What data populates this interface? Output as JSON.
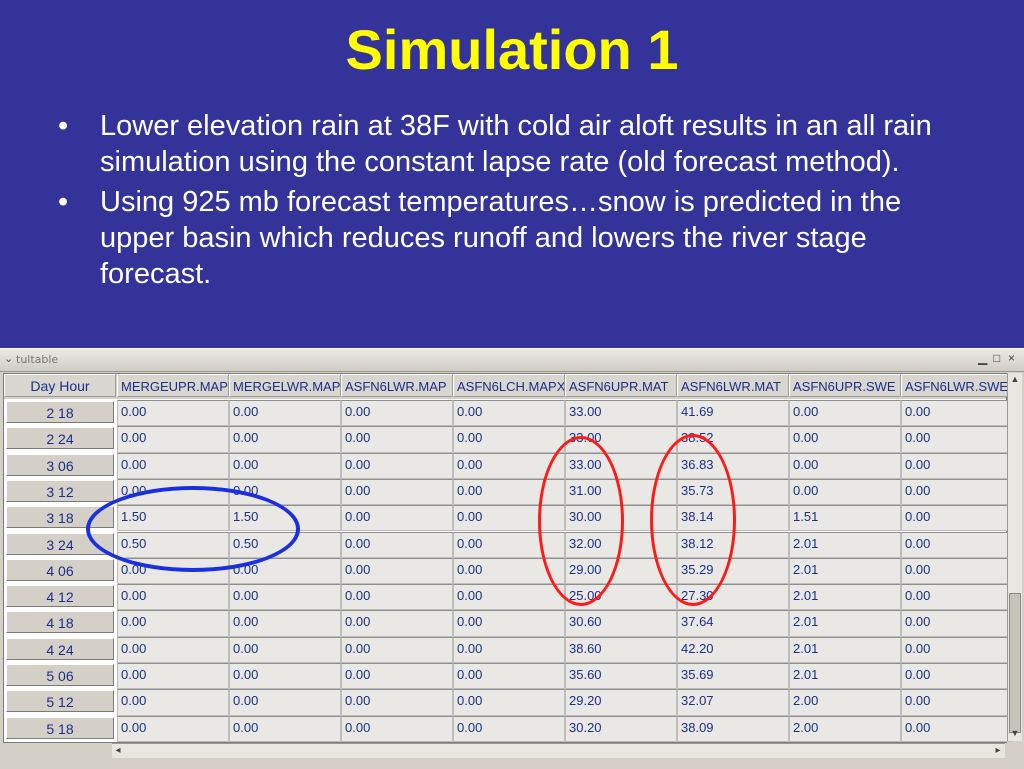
{
  "slide": {
    "title": "Simulation 1",
    "bullets": [
      "Lower elevation rain at 38F with cold air aloft results in an all rain simulation using the constant lapse rate (old forecast method).",
      "Using 925 mb forecast temperatures…snow is predicted in the upper basin which reduces runoff and lowers the river stage forecast."
    ],
    "bullet_glyph": "•"
  },
  "window": {
    "title": "tultable",
    "menu_icon": "chevron-down-icon",
    "controls": {
      "minimize": "▁",
      "maximize": "□",
      "close": "×"
    }
  },
  "table": {
    "row_header_label": "Day  Hour",
    "columns": [
      "MERGEUPR.MAP",
      "MERGELWR.MAP",
      "ASFN6LWR.MAP",
      "ASFN6LCH.MAPX",
      "ASFN6UPR.MAT",
      "ASFN6LWR.MAT",
      "ASFN6UPR.SWE",
      "ASFN6LWR.SWE"
    ],
    "rows": [
      {
        "label": "2  18",
        "values": [
          "0.00",
          "0.00",
          "0.00",
          "0.00",
          "33.00",
          "41.69",
          "0.00",
          "0.00"
        ]
      },
      {
        "label": "2  24",
        "values": [
          "0.00",
          "0.00",
          "0.00",
          "0.00",
          "33.00",
          "38.52",
          "0.00",
          "0.00"
        ]
      },
      {
        "label": "3  06",
        "values": [
          "0.00",
          "0.00",
          "0.00",
          "0.00",
          "33.00",
          "36.83",
          "0.00",
          "0.00"
        ]
      },
      {
        "label": "3  12",
        "values": [
          "0.00",
          "0.00",
          "0.00",
          "0.00",
          "31.00",
          "35.73",
          "0.00",
          "0.00"
        ]
      },
      {
        "label": "3  18",
        "values": [
          "1.50",
          "1.50",
          "0.00",
          "0.00",
          "30.00",
          "38.14",
          "1.51",
          "0.00"
        ]
      },
      {
        "label": "3  24",
        "values": [
          "0.50",
          "0.50",
          "0.00",
          "0.00",
          "32.00",
          "38.12",
          "2.01",
          "0.00"
        ]
      },
      {
        "label": "4  06",
        "values": [
          "0.00",
          "0.00",
          "0.00",
          "0.00",
          "29.00",
          "35.29",
          "2.01",
          "0.00"
        ]
      },
      {
        "label": "4  12",
        "values": [
          "0.00",
          "0.00",
          "0.00",
          "0.00",
          "25.00",
          "27.30",
          "2.01",
          "0.00"
        ]
      },
      {
        "label": "4  18",
        "values": [
          "0.00",
          "0.00",
          "0.00",
          "0.00",
          "30.60",
          "37.64",
          "2.01",
          "0.00"
        ]
      },
      {
        "label": "4  24",
        "values": [
          "0.00",
          "0.00",
          "0.00",
          "0.00",
          "38.60",
          "42.20",
          "2.01",
          "0.00"
        ]
      },
      {
        "label": "5  06",
        "values": [
          "0.00",
          "0.00",
          "0.00",
          "0.00",
          "35.60",
          "35.69",
          "2.01",
          "0.00"
        ]
      },
      {
        "label": "5  12",
        "values": [
          "0.00",
          "0.00",
          "0.00",
          "0.00",
          "29.20",
          "32.07",
          "2.00",
          "0.00"
        ]
      },
      {
        "label": "5  18",
        "values": [
          "0.00",
          "0.00",
          "0.00",
          "0.00",
          "30.20",
          "38.09",
          "2.00",
          "0.00"
        ]
      }
    ]
  },
  "annotations": {
    "red_ring_color": "#ff1a1a",
    "blue_ring_color": "#1a2fe0"
  }
}
